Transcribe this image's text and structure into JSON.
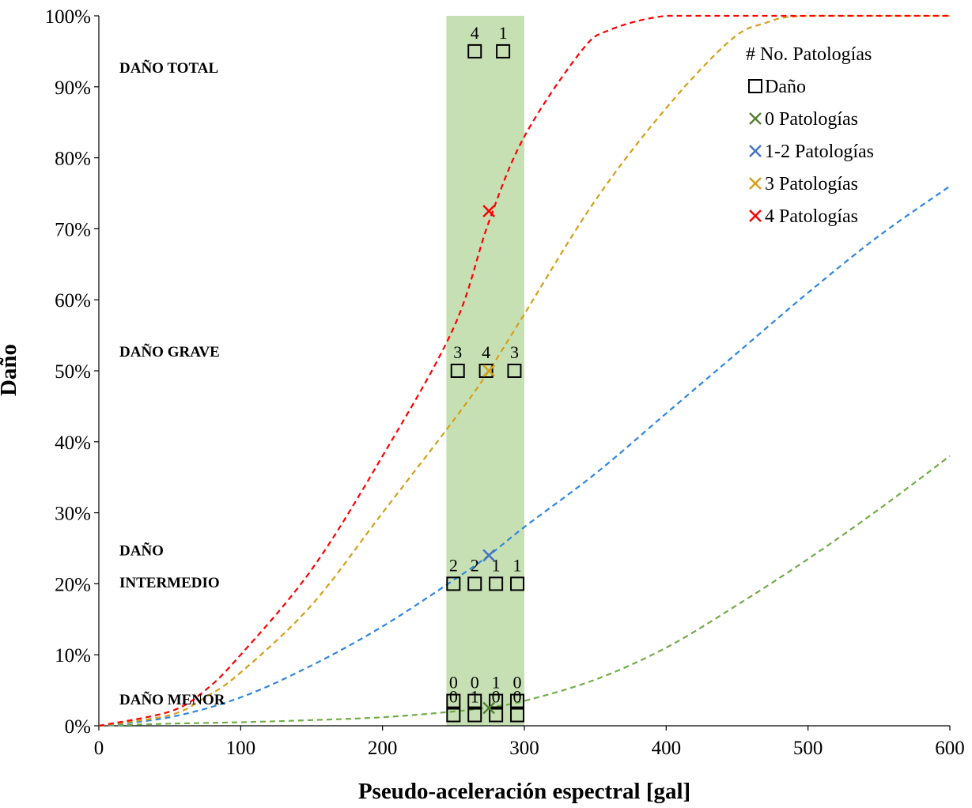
{
  "chart_data": {
    "type": "line",
    "title": "",
    "xlabel": "Pseudo-aceleración espectral [gal]",
    "ylabel": "Daño",
    "xlim": [
      0,
      600
    ],
    "ylim": [
      0,
      100
    ],
    "x_ticks": [
      0,
      100,
      200,
      300,
      400,
      500,
      600
    ],
    "y_ticks": [
      0,
      10,
      20,
      30,
      40,
      50,
      60,
      70,
      80,
      90,
      100
    ],
    "y_tick_labels": [
      "0%",
      "10%",
      "20%",
      "30%",
      "40%",
      "50%",
      "60%",
      "70%",
      "80%",
      "90%",
      "100%"
    ],
    "grid": false,
    "legend_position": "top-right",
    "highlight_band": {
      "x_start": 245,
      "x_end": 300,
      "color": "#c6e0b4"
    },
    "damage_levels": [
      {
        "label": "DAÑO TOTAL",
        "y": 92
      },
      {
        "label": "DAÑO GRAVE",
        "y": 52
      },
      {
        "label": "DAÑO",
        "y": 24
      },
      {
        "label": "INTERMEDIO",
        "y": 19.5
      },
      {
        "label": "DAÑO MENOR",
        "y": 3
      }
    ],
    "legend": {
      "title": "# No. Patologías",
      "entries": [
        {
          "name": "Daño",
          "marker": "square",
          "color": "#000000"
        },
        {
          "name": "0 Patologías",
          "marker": "x",
          "color": "#548235"
        },
        {
          "name": "1-2 Patologías",
          "marker": "x",
          "color": "#4472c4"
        },
        {
          "name": "3 Patologías",
          "marker": "x",
          "color": "#d4a017"
        },
        {
          "name": "4 Patologías",
          "marker": "x",
          "color": "#ff0000"
        }
      ]
    },
    "series": [
      {
        "name": "0 Patologías",
        "color": "#70ad47",
        "x": [
          0,
          50,
          100,
          150,
          200,
          250,
          275,
          300,
          350,
          400,
          450,
          500,
          550,
          600
        ],
        "y": [
          0,
          0.3,
          0.5,
          0.8,
          1.2,
          2,
          2.6,
          3.5,
          6.5,
          11,
          17,
          23.5,
          30.5,
          38
        ]
      },
      {
        "name": "1-2 Patologías",
        "color": "#2e86de",
        "x": [
          0,
          50,
          100,
          150,
          200,
          250,
          275,
          300,
          350,
          400,
          450,
          500,
          550,
          600
        ],
        "y": [
          0,
          1.2,
          4,
          8.5,
          14,
          20.5,
          24,
          28,
          35.5,
          44,
          52.5,
          61,
          69,
          76
        ]
      },
      {
        "name": "3 Patologías",
        "color": "#d4a017",
        "x": [
          0,
          50,
          75,
          100,
          150,
          200,
          250,
          275,
          300,
          350,
          400,
          445,
          470,
          500,
          600
        ],
        "y": [
          0,
          1.5,
          4,
          7.5,
          17,
          30,
          43,
          50,
          58,
          74,
          87,
          96.5,
          99,
          100,
          100
        ]
      },
      {
        "name": "4 Patologías",
        "color": "#ff0000",
        "x": [
          0,
          50,
          75,
          100,
          150,
          200,
          250,
          275,
          300,
          340,
          360,
          400,
          450,
          600
        ],
        "y": [
          0,
          2,
          5,
          10,
          22,
          38,
          56,
          71,
          83,
          95,
          98,
          100,
          100,
          100
        ]
      }
    ],
    "points": [
      {
        "series": "0 Patologías",
        "x": 275,
        "y": 2.5,
        "marker": "x",
        "color": "#548235"
      },
      {
        "series": "1-2 Patologías",
        "x": 275,
        "y": 24,
        "marker": "x",
        "color": "#4472c4"
      },
      {
        "series": "3 Patologías",
        "x": 275,
        "y": 50,
        "marker": "x",
        "color": "#d4a017"
      },
      {
        "series": "4 Patologías",
        "x": 275,
        "y": 72.5,
        "marker": "x",
        "color": "#ff0000"
      }
    ],
    "damage_squares": [
      {
        "x": 265,
        "y": 95,
        "label": "4"
      },
      {
        "x": 285,
        "y": 95,
        "label": "1"
      },
      {
        "x": 253,
        "y": 50,
        "label": "3"
      },
      {
        "x": 273,
        "y": 50,
        "label": "4"
      },
      {
        "x": 293,
        "y": 50,
        "label": "3"
      },
      {
        "x": 250,
        "y": 20,
        "label": "2"
      },
      {
        "x": 265,
        "y": 20,
        "label": "2"
      },
      {
        "x": 280,
        "y": 20,
        "label": "1"
      },
      {
        "x": 295,
        "y": 20,
        "label": "1"
      },
      {
        "x": 250,
        "y": 3.5,
        "label": "0"
      },
      {
        "x": 265,
        "y": 3.5,
        "label": "0"
      },
      {
        "x": 280,
        "y": 3.5,
        "label": "1"
      },
      {
        "x": 295,
        "y": 3.5,
        "label": "0"
      },
      {
        "x": 250,
        "y": 1.5,
        "label": "0"
      },
      {
        "x": 265,
        "y": 1.5,
        "label": "1"
      },
      {
        "x": 280,
        "y": 1.5,
        "label": "0"
      },
      {
        "x": 295,
        "y": 1.5,
        "label": "0"
      }
    ]
  }
}
